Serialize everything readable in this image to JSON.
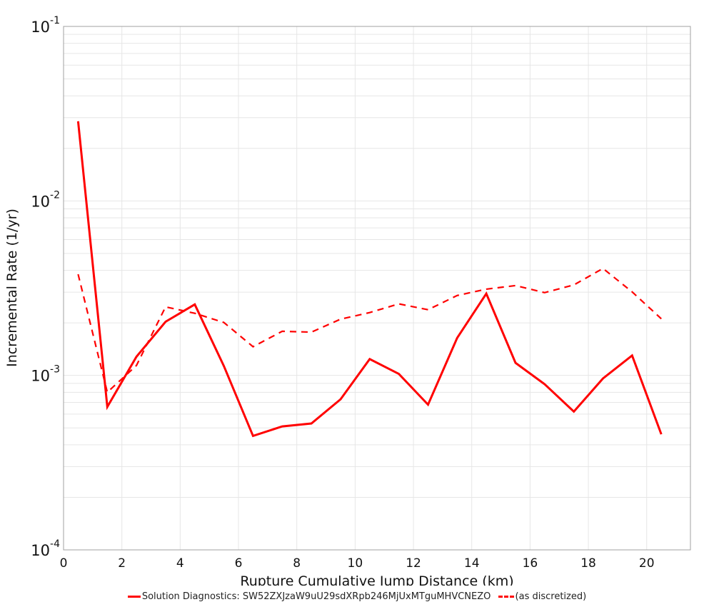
{
  "chart_data": {
    "type": "line",
    "title": "",
    "xlabel": "Rupture Cumulative Jump Distance (km)",
    "ylabel": "Incremental Rate (1/yr)",
    "yscale": "log",
    "xlim": [
      0,
      21.5
    ],
    "ylim": [
      0.0001,
      0.1
    ],
    "xticks": [
      0,
      2,
      4,
      6,
      8,
      10,
      12,
      14,
      16,
      18,
      20
    ],
    "yticks": [
      {
        "value": 0.1,
        "base": "10",
        "exp": "-1"
      },
      {
        "value": 0.01,
        "base": "10",
        "exp": "-2"
      },
      {
        "value": 0.001,
        "base": "10",
        "exp": "-3"
      },
      {
        "value": 0.0001,
        "base": "10",
        "exp": "-4"
      }
    ],
    "grid": true,
    "legend_position": "bottom",
    "x": [
      0.5,
      1.5,
      2.5,
      3.5,
      4.5,
      5.5,
      6.5,
      7.5,
      8.5,
      9.5,
      10.5,
      11.5,
      12.5,
      13.5,
      14.5,
      15.5,
      16.5,
      17.5,
      18.5,
      19.5,
      20.5
    ],
    "series": [
      {
        "name": "Solution Diagnostics: SW52ZXJzaW9uU29sdXRpb246MjUxMTguMHVCNEZO",
        "color": "#ff0000",
        "style": "solid",
        "values": [
          0.0286,
          0.00066,
          0.00128,
          0.00203,
          0.00255,
          0.00113,
          0.00045,
          0.00051,
          0.00053,
          0.00073,
          0.00124,
          0.00102,
          0.00068,
          0.00164,
          0.00294,
          0.00118,
          0.00089,
          0.00062,
          0.00096,
          0.0013,
          0.00046
        ]
      },
      {
        "name": "(as discretized)",
        "color": "#ff0000",
        "style": "dashed",
        "values": [
          0.0038,
          0.0008,
          0.00114,
          0.00247,
          0.00227,
          0.00201,
          0.00146,
          0.00179,
          0.00177,
          0.0021,
          0.00229,
          0.00257,
          0.00238,
          0.00287,
          0.00312,
          0.00327,
          0.00298,
          0.0033,
          0.0041,
          0.00301,
          0.00211
        ]
      }
    ]
  },
  "legend": {
    "items": [
      {
        "label": "Solution Diagnostics: SW52ZXJzaW9uU29sdXRpb246MjUxMTguMHVCNEZO"
      },
      {
        "label": "(as discretized)"
      }
    ]
  }
}
